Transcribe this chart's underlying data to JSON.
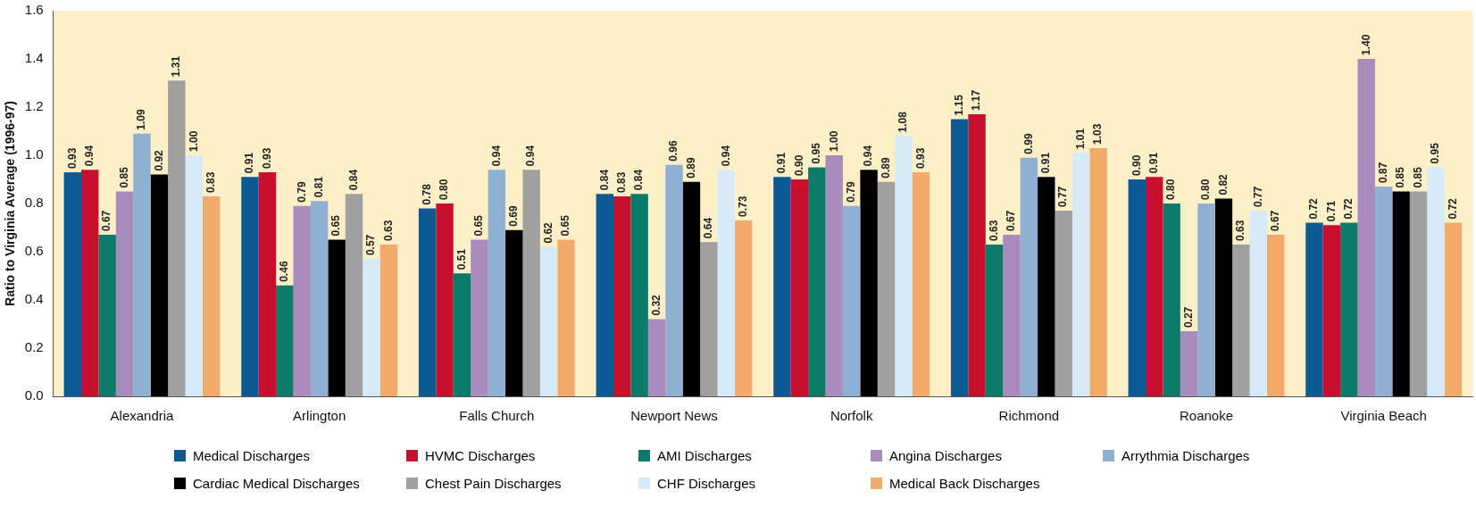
{
  "chart_data": {
    "type": "bar",
    "ylabel": "Ratio to Virginia Average (1996-97)",
    "categories": [
      "Alexandria",
      "Arlington",
      "Falls Church",
      "Newport News",
      "Norfolk",
      "Richmond",
      "Roanoke",
      "Virginia Beach"
    ],
    "series": [
      {
        "name": "Medical Discharges",
        "color": "#0b5a94",
        "values": [
          0.93,
          0.91,
          0.78,
          0.84,
          0.91,
          1.15,
          0.9,
          0.72
        ],
        "value_labels": [
          "0.93",
          "0.91",
          "0.78",
          "0.84",
          "0.91",
          "1.15",
          "0.90",
          "0.72"
        ]
      },
      {
        "name": "HVMC Discharges",
        "color": "#c8102e",
        "values": [
          0.94,
          0.93,
          0.8,
          0.83,
          0.9,
          1.17,
          0.91,
          0.71
        ],
        "value_labels": [
          "0.94",
          "0.93",
          "0.80",
          "0.83",
          "0.90",
          "1.17",
          "0.91",
          "0.71"
        ]
      },
      {
        "name": "AMI Discharges",
        "color": "#0b7a68",
        "values": [
          0.67,
          0.46,
          0.51,
          0.84,
          0.95,
          0.63,
          0.8,
          0.72
        ],
        "value_labels": [
          "0.67",
          "0.46",
          "0.51",
          "0.84",
          "0.95",
          "0.63",
          "0.80",
          "0.72"
        ]
      },
      {
        "name": "Angina Discharges",
        "color": "#a98bbd",
        "values": [
          0.85,
          0.79,
          0.65,
          0.32,
          1.0,
          0.67,
          0.27,
          1.4
        ],
        "value_labels": [
          "0.85",
          "0.79",
          "0.65",
          "0.32",
          "1.00",
          "0.67",
          "0.27",
          "1.40"
        ]
      },
      {
        "name": "Arrythmia Discharges",
        "color": "#8fb0d3",
        "values": [
          1.09,
          0.81,
          0.94,
          0.96,
          0.79,
          0.99,
          0.8,
          0.87
        ],
        "value_labels": [
          "1.09",
          "0.81",
          "0.94",
          "0.96",
          "0.79",
          "0.99",
          "0.80",
          "0.87"
        ]
      },
      {
        "name": "Cardiac Medical Discharges",
        "color": "#000000",
        "values": [
          0.92,
          0.65,
          0.69,
          0.89,
          0.94,
          0.91,
          0.82,
          0.85
        ],
        "value_labels": [
          "0.92",
          "0.65",
          "0.69",
          "0.89",
          "0.94",
          "0.91",
          "0.82",
          "0.85"
        ]
      },
      {
        "name": "Chest Pain Discharges",
        "color": "#a0a0a0",
        "values": [
          1.31,
          0.84,
          0.94,
          0.64,
          0.89,
          0.77,
          0.63,
          0.85
        ],
        "value_labels": [
          "1.31",
          "0.84",
          "0.94",
          "0.64",
          "0.89",
          "0.77",
          "0.63",
          "0.85"
        ]
      },
      {
        "name": "CHF Discharges",
        "color": "#d6eaf8",
        "values": [
          1.0,
          0.57,
          0.62,
          0.94,
          1.08,
          1.01,
          0.77,
          0.95
        ],
        "value_labels": [
          "1.00",
          "0.57",
          "0.62",
          "0.94",
          "1.08",
          "1.01",
          "0.77",
          "0.95"
        ]
      },
      {
        "name": "Medical Back Discharges",
        "color": "#f2a96a",
        "values": [
          0.83,
          0.63,
          0.65,
          0.73,
          0.93,
          1.03,
          0.67,
          0.72
        ],
        "value_labels": [
          "0.83",
          "0.63",
          "0.65",
          "0.73",
          "0.93",
          "1.03",
          "0.67",
          "0.72"
        ]
      }
    ],
    "ylim": [
      0,
      1.6
    ],
    "yticks": [
      {
        "value": 0,
        "label": "0.0"
      },
      {
        "value": 0.2,
        "label": "0.2"
      },
      {
        "value": 0.4,
        "label": "0.4"
      },
      {
        "value": 0.6,
        "label": "0.6"
      },
      {
        "value": 0.8,
        "label": "0.8"
      },
      {
        "value": 1.0,
        "label": "1.0"
      },
      {
        "value": 1.2,
        "label": "1.2"
      },
      {
        "value": 1.4,
        "label": "1.4"
      },
      {
        "value": 1.6,
        "label": "1.6"
      }
    ],
    "grid": false,
    "legend": "bottom"
  }
}
